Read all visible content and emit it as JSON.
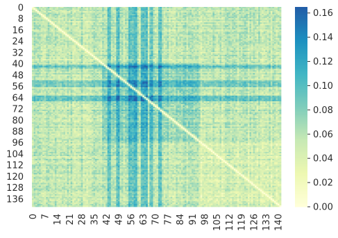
{
  "chart_data": {
    "type": "heatmap",
    "title": "",
    "xlabel": "",
    "ylabel": "",
    "n": 142,
    "matrix_description": "symmetric pairwise matrix, diagonal near zero",
    "x_tick_labels": [
      "0",
      "7",
      "14",
      "21",
      "28",
      "35",
      "42",
      "49",
      "56",
      "63",
      "70",
      "77",
      "84",
      "91",
      "98",
      "105",
      "112",
      "119",
      "126",
      "133",
      "140"
    ],
    "y_tick_labels": [
      "0",
      "8",
      "16",
      "24",
      "32",
      "40",
      "48",
      "56",
      "64",
      "72",
      "80",
      "88",
      "96",
      "104",
      "112",
      "120",
      "128",
      "136"
    ],
    "colorbar": {
      "min": 0.0,
      "max": 0.165,
      "tick_labels": [
        "0.00",
        "0.02",
        "0.04",
        "0.06",
        "0.08",
        "0.10",
        "0.12",
        "0.14",
        "0.16"
      ],
      "tick_values": [
        0.0,
        0.02,
        0.04,
        0.06,
        0.08,
        0.1,
        0.12,
        0.14,
        0.16
      ]
    },
    "colormap": "YlGnBu",
    "colormap_stops": [
      "#ffffd9",
      "#edf8b1",
      "#c7e9b4",
      "#7fcdbb",
      "#41b6c4",
      "#1d91c0",
      "#225ea8",
      "#253494",
      "#081d58"
    ],
    "colormap_used_range": [
      0.0,
      0.75
    ],
    "high_value_rows": [
      41,
      42,
      43,
      52,
      53,
      54,
      55,
      56,
      63,
      64,
      65,
      66
    ],
    "high_value_columns": [
      43,
      44,
      48,
      49,
      55,
      56,
      57,
      58,
      59,
      62,
      63,
      64,
      65,
      67,
      68,
      72,
      73
    ],
    "cluster_band": [
      40,
      95
    ]
  }
}
